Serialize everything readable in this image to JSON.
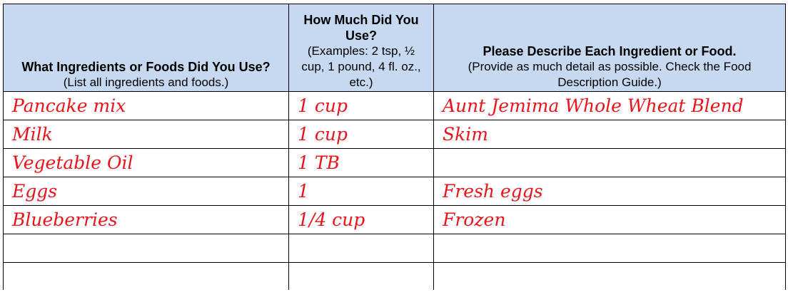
{
  "headers": [
    {
      "title": "What Ingredients or Foods Did You Use?",
      "note": "(List all ingredients and foods.)"
    },
    {
      "title": "How Much Did You Use?",
      "note": "(Examples: 2 tsp, ½ cup, 1 pound, 4 fl. oz., etc.)"
    },
    {
      "title": "Please Describe Each Ingredient or Food.",
      "note": "(Provide as much detail as possible. Check the Food Description Guide.)"
    }
  ],
  "rows": [
    [
      "Pancake mix",
      "1 cup",
      "Aunt Jemima Whole Wheat Blend"
    ],
    [
      "Milk",
      "1 cup",
      "Skim"
    ],
    [
      "Vegetable Oil",
      "1 TB",
      ""
    ],
    [
      "Eggs",
      "1",
      "Fresh eggs"
    ],
    [
      "Blueberries",
      "1/4 cup",
      "Frozen"
    ],
    [
      "",
      "",
      ""
    ],
    [
      "",
      "",
      ""
    ]
  ],
  "colors": {
    "header_bg": "#c6d9f1",
    "handwriting": "#e8141c"
  }
}
